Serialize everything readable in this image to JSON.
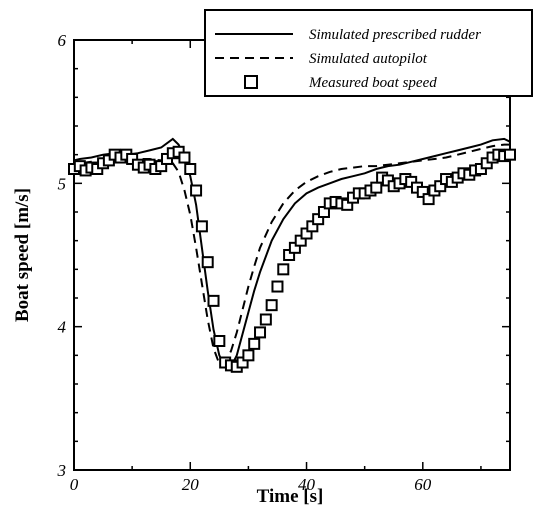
{
  "chart_data": {
    "type": "line",
    "xlabel": "Time [s]",
    "ylabel": "Boat speed [m/s]",
    "xlim": [
      0,
      75
    ],
    "ylim": [
      3,
      6
    ],
    "xticks": [
      0,
      20,
      40,
      60
    ],
    "yticks": [
      3,
      4,
      5,
      6
    ],
    "grid": false,
    "legend_position": "top-right",
    "series": [
      {
        "name": "Simulated prescribed rudder",
        "style": "solid",
        "color": "#000000",
        "x": [
          -1,
          1,
          3,
          5,
          7,
          9,
          11,
          13,
          15,
          17,
          18,
          19,
          20,
          21,
          22,
          23,
          24,
          25,
          26,
          27,
          28,
          29,
          30,
          31,
          32,
          34,
          36,
          38,
          40,
          42,
          44,
          46,
          48,
          50,
          52,
          54,
          56,
          58,
          60,
          62,
          64,
          66,
          68,
          70,
          72,
          74,
          75
        ],
        "y": [
          5.15,
          5.17,
          5.18,
          5.2,
          5.21,
          5.2,
          5.21,
          5.23,
          5.25,
          5.31,
          5.27,
          5.18,
          5.05,
          4.85,
          4.55,
          4.25,
          3.98,
          3.8,
          3.72,
          3.72,
          3.8,
          3.95,
          4.1,
          4.25,
          4.38,
          4.6,
          4.75,
          4.86,
          4.93,
          4.97,
          5.0,
          5.03,
          5.05,
          5.07,
          5.1,
          5.12,
          5.13,
          5.15,
          5.17,
          5.19,
          5.21,
          5.23,
          5.25,
          5.27,
          5.3,
          5.31,
          5.29
        ]
      },
      {
        "name": "Simulated autopilot",
        "style": "dashed",
        "color": "#000000",
        "x": [
          -1,
          1,
          3,
          5,
          7,
          9,
          11,
          13,
          15,
          17,
          18,
          19,
          20,
          21,
          22,
          23,
          24,
          25,
          26,
          27,
          28,
          29,
          30,
          31,
          32,
          34,
          36,
          38,
          40,
          42,
          44,
          46,
          48,
          50,
          52,
          54,
          56,
          58,
          60,
          62,
          64,
          66,
          68,
          70,
          72,
          74,
          75
        ],
        "y": [
          5.12,
          5.14,
          5.15,
          5.16,
          5.17,
          5.17,
          5.17,
          5.17,
          5.16,
          5.14,
          5.08,
          4.95,
          4.78,
          4.55,
          4.3,
          4.05,
          3.85,
          3.74,
          3.75,
          3.83,
          3.96,
          4.12,
          4.28,
          4.42,
          4.55,
          4.73,
          4.86,
          4.95,
          5.01,
          5.05,
          5.08,
          5.1,
          5.11,
          5.12,
          5.12,
          5.13,
          5.14,
          5.15,
          5.16,
          5.17,
          5.18,
          5.2,
          5.22,
          5.24,
          5.26,
          5.27,
          5.27
        ]
      },
      {
        "name": "Measured boat speed",
        "style": "markers",
        "marker": "square",
        "color": "#000000",
        "x": [
          0,
          1,
          2,
          3,
          4,
          5,
          6,
          7,
          8,
          9,
          10,
          11,
          12,
          13,
          14,
          15,
          16,
          17,
          18,
          19,
          20,
          21,
          22,
          23,
          24,
          25,
          26,
          27,
          28,
          29,
          30,
          31,
          32,
          33,
          34,
          35,
          36,
          37,
          38,
          39,
          40,
          41,
          42,
          43,
          44,
          45,
          46,
          47,
          48,
          49,
          50,
          51,
          52,
          53,
          54,
          55,
          56,
          57,
          58,
          59,
          60,
          61,
          62,
          63,
          64,
          65,
          66,
          67,
          68,
          69,
          70,
          71,
          72,
          73,
          74,
          75
        ],
        "y": [
          5.1,
          5.12,
          5.09,
          5.11,
          5.1,
          5.14,
          5.16,
          5.2,
          5.18,
          5.2,
          5.17,
          5.13,
          5.11,
          5.13,
          5.1,
          5.12,
          5.17,
          5.21,
          5.22,
          5.18,
          5.1,
          4.95,
          4.7,
          4.45,
          4.18,
          3.9,
          3.75,
          3.73,
          3.72,
          3.75,
          3.8,
          3.88,
          3.96,
          4.05,
          4.15,
          4.28,
          4.4,
          4.5,
          4.55,
          4.6,
          4.65,
          4.7,
          4.75,
          4.8,
          4.86,
          4.87,
          4.86,
          4.85,
          4.9,
          4.93,
          4.93,
          4.95,
          4.97,
          5.04,
          5.02,
          4.98,
          5.0,
          5.03,
          5.01,
          4.97,
          4.94,
          4.89,
          4.95,
          4.98,
          5.03,
          5.01,
          5.04,
          5.07,
          5.06,
          5.09,
          5.1,
          5.14,
          5.18,
          5.2,
          5.19,
          5.2
        ]
      }
    ]
  }
}
